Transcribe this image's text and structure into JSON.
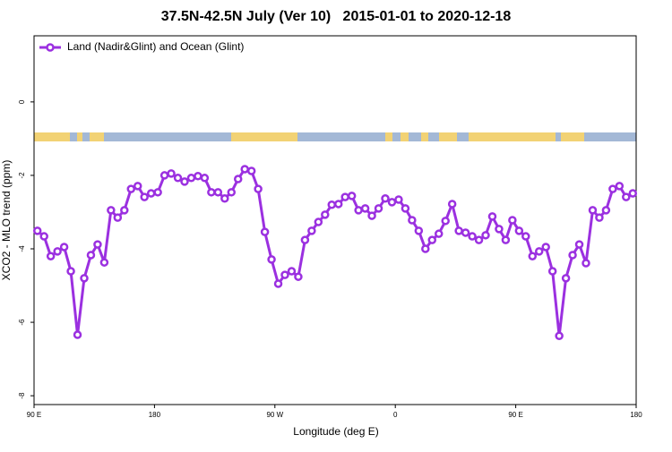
{
  "chart_data": {
    "type": "line",
    "title": "37.5N-42.5N July (Ver 10)   2015-01-01 to 2020-12-18",
    "x_label": "Longitude (deg E)",
    "y_label": "XCO2 - MLO trend (ppm)",
    "xlim": [
      90,
      540
    ],
    "ylim": [
      -8.24,
      1.8
    ],
    "xticks": [
      {
        "value": 90,
        "label": "90 E"
      },
      180,
      {
        "value": 270,
        "label": "90 W"
      },
      {
        "value": 360,
        "label": "0"
      },
      {
        "value": 450,
        "label": "90 E"
      },
      {
        "value": 540,
        "label": "180"
      }
    ],
    "yticks": [
      0,
      -2,
      -4,
      -6,
      -8
    ],
    "legend": "top-left",
    "x": [
      92.5,
      97.5,
      102.5,
      107.5,
      112.5,
      117.5,
      122.5,
      127.5,
      132.5,
      137.5,
      142.5,
      147.5,
      152.5,
      157.5,
      162.5,
      167.5,
      172.5,
      177.5,
      182.5,
      187.5,
      192.5,
      197.5,
      202.5,
      207.5,
      212.5,
      217.5,
      222.5,
      227.5,
      232.5,
      237.5,
      242.5,
      247.5,
      252.5,
      257.5,
      262.5,
      267.5,
      272.5,
      277.5,
      282.5,
      287.5,
      292.5,
      297.5,
      302.5,
      307.5,
      312.5,
      317.5,
      322.5,
      327.5,
      332.5,
      337.5,
      342.5,
      347.5,
      352.5,
      357.5,
      362.5,
      367.5,
      372.5,
      377.5,
      382.5,
      387.5,
      392.5,
      397.5,
      402.5,
      407.5,
      412.5,
      417.5,
      422.5,
      427.5,
      432.5,
      437.5,
      442.5,
      447.5,
      452.5,
      457.5,
      462.5,
      467.5,
      472.5,
      477.5,
      482.5,
      487.5,
      492.5,
      497.5,
      502.5,
      507.5,
      512.5,
      517.5,
      522.5,
      527.5,
      532.5,
      537.5
    ],
    "series": [
      {
        "name": "Land (Nadir&Glint) and Ocean (Glint)",
        "color": "#9b30e0",
        "values": [
          -3.51,
          -3.66,
          -4.2,
          -4.07,
          -3.95,
          -4.61,
          -6.34,
          -4.8,
          -4.17,
          -3.88,
          -4.37,
          -2.95,
          -3.15,
          -2.95,
          -2.37,
          -2.29,
          -2.59,
          -2.49,
          -2.46,
          -2.0,
          -1.95,
          -2.07,
          -2.17,
          -2.07,
          -2.02,
          -2.07,
          -2.46,
          -2.46,
          -2.63,
          -2.46,
          -2.1,
          -1.83,
          -1.88,
          -2.37,
          -3.54,
          -4.29,
          -4.95,
          -4.71,
          -4.61,
          -4.76,
          -3.76,
          -3.51,
          -3.27,
          -3.07,
          -2.8,
          -2.78,
          -2.59,
          -2.56,
          -2.95,
          -2.9,
          -3.1,
          -2.9,
          -2.63,
          -2.73,
          -2.66,
          -2.9,
          -3.22,
          -3.51,
          -4.0,
          -3.76,
          -3.59,
          -3.24,
          -2.78,
          -3.51,
          -3.56,
          -3.66,
          -3.76,
          -3.63,
          -3.12,
          -3.46,
          -3.76,
          -3.22,
          -3.51,
          -3.66,
          -4.2,
          -4.07,
          -3.95,
          -4.61,
          -6.37,
          -4.8,
          -4.17,
          -3.88,
          -4.39,
          -2.95,
          -3.15,
          -2.95,
          -2.37,
          -2.29,
          -2.59,
          -2.49
        ]
      }
    ]
  }
}
